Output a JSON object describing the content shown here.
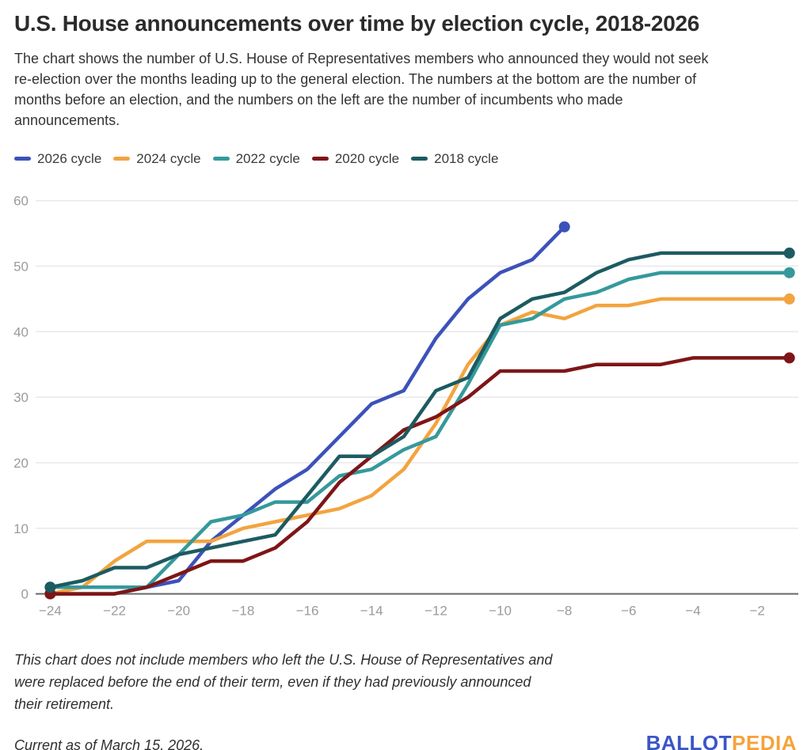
{
  "header": {
    "title": "U.S. House announcements over time by election cycle, 2018-2026",
    "description": "The chart shows the number of U.S. House of Representatives members who announced they would not seek re-election over the months leading up to the general election. The numbers at the bottom are the number of months before an election, and the numbers on the left are the number of incumbents who made announcements."
  },
  "legend": [
    {
      "label": "2026 cycle",
      "color": "#3C52B9"
    },
    {
      "label": "2024 cycle",
      "color": "#F2A440"
    },
    {
      "label": "2022 cycle",
      "color": "#35999B"
    },
    {
      "label": "2020 cycle",
      "color": "#7E1517"
    },
    {
      "label": "2018 cycle",
      "color": "#1C5B61"
    }
  ],
  "chart_data": {
    "type": "line",
    "title": "U.S. House announcements over time by election cycle, 2018-2026",
    "xlabel": "",
    "ylabel": "",
    "x": [
      -24,
      -23,
      -22,
      -21,
      -20,
      -19,
      -18,
      -17,
      -16,
      -15,
      -14,
      -13,
      -12,
      -11,
      -10,
      -9,
      -8,
      -7,
      -6,
      -5,
      -4,
      -3,
      -2,
      -1
    ],
    "xticks": [
      -24,
      -22,
      -20,
      -18,
      -16,
      -14,
      -12,
      -10,
      -8,
      -6,
      -4,
      -2
    ],
    "xtick_labels": [
      "−24",
      "−22",
      "−20",
      "−18",
      "−16",
      "−14",
      "−12",
      "−10",
      "−8",
      "−6",
      "−4",
      "−2"
    ],
    "yticks": [
      0,
      10,
      20,
      30,
      40,
      50,
      60
    ],
    "ylim": [
      0,
      60
    ],
    "grid": "horizontal",
    "legend_position": "top",
    "series": [
      {
        "name": "2026 cycle",
        "color": "#3C52B9",
        "values": [
          0,
          0,
          0,
          1,
          2,
          8,
          12,
          16,
          19,
          24,
          29,
          31,
          39,
          45,
          49,
          51,
          56
        ]
      },
      {
        "name": "2024 cycle",
        "color": "#F2A440",
        "values": [
          0,
          1,
          5,
          8,
          8,
          8,
          10,
          11,
          12,
          13,
          15,
          19,
          26,
          35,
          41,
          43,
          42,
          44,
          44,
          45,
          45,
          45,
          45,
          45
        ]
      },
      {
        "name": "2022 cycle",
        "color": "#35999B",
        "values": [
          1,
          1,
          1,
          1,
          6,
          11,
          12,
          14,
          14,
          18,
          19,
          22,
          24,
          32,
          41,
          42,
          45,
          46,
          48,
          49,
          49,
          49,
          49,
          49
        ]
      },
      {
        "name": "2020 cycle",
        "color": "#7E1517",
        "values": [
          0,
          0,
          0,
          1,
          3,
          5,
          5,
          7,
          11,
          17,
          21,
          25,
          27,
          30,
          34,
          34,
          34,
          35,
          35,
          35,
          36,
          36,
          36,
          36
        ]
      },
      {
        "name": "2018 cycle",
        "color": "#1C5B61",
        "values": [
          1,
          2,
          4,
          4,
          6,
          7,
          8,
          9,
          15,
          21,
          21,
          24,
          31,
          33,
          42,
          45,
          46,
          49,
          51,
          52,
          52,
          52,
          52,
          52
        ]
      }
    ]
  },
  "footer": {
    "note": "This chart does not include members who left the U.S. House of Representatives and were replaced before the end of their term, even if they had previously announced their retirement.",
    "current_as_of": "Current as of March 15, 2026.",
    "logo": {
      "ballot": "BALLOT",
      "pedia": "PEDIA",
      "ballot_color": "#3B55C8",
      "pedia_color": "#F5A33B"
    }
  }
}
